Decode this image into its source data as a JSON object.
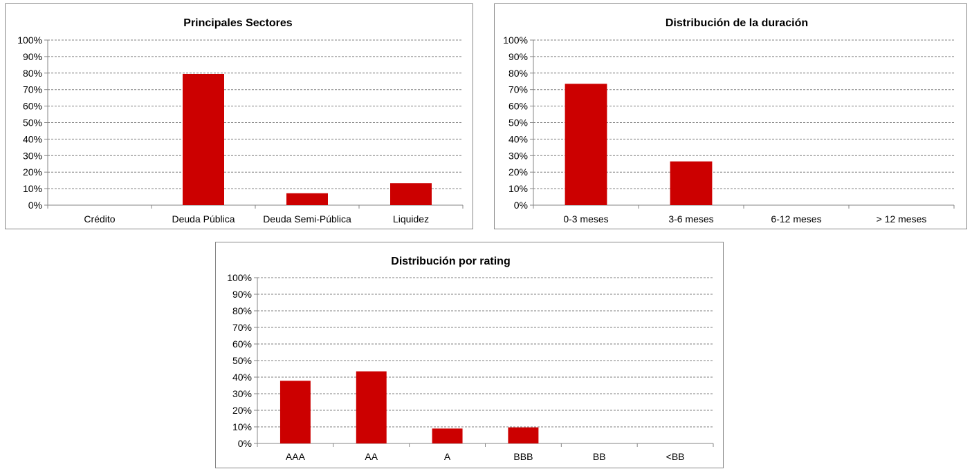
{
  "colors": {
    "bar": "#cc0000",
    "grid": "#7f7f7f",
    "axis": "#868686",
    "text": "#000000"
  },
  "chart_data": [
    {
      "type": "bar",
      "title": "Principales Sectores",
      "categories": [
        "Crédito",
        "Deuda Pública",
        "Deuda Semi-Pública",
        "Liquidez"
      ],
      "values": [
        0,
        79.5,
        7.2,
        13.3
      ],
      "ylim": [
        0,
        100
      ],
      "yticks": [
        "0%",
        "10%",
        "20%",
        "30%",
        "40%",
        "50%",
        "60%",
        "70%",
        "80%",
        "90%",
        "100%"
      ],
      "grid": true,
      "xlabel": "",
      "ylabel": ""
    },
    {
      "type": "bar",
      "title": "Distribución de la duración",
      "categories": [
        "0-3 meses",
        "3-6 meses",
        "6-12 meses",
        "> 12 meses"
      ],
      "values": [
        73.5,
        26.5,
        0,
        0
      ],
      "ylim": [
        0,
        100
      ],
      "yticks": [
        "0%",
        "10%",
        "20%",
        "30%",
        "40%",
        "50%",
        "60%",
        "70%",
        "80%",
        "90%",
        "100%"
      ],
      "grid": true,
      "xlabel": "",
      "ylabel": ""
    },
    {
      "type": "bar",
      "title": "Distribución por rating",
      "categories": [
        "AAA",
        "AA",
        "A",
        "BBB",
        "BB",
        "<BB"
      ],
      "values": [
        37.8,
        43.5,
        9.0,
        9.7,
        0,
        0
      ],
      "ylim": [
        0,
        100
      ],
      "yticks": [
        "0%",
        "10%",
        "20%",
        "30%",
        "40%",
        "50%",
        "60%",
        "70%",
        "80%",
        "90%",
        "100%"
      ],
      "grid": true,
      "xlabel": "",
      "ylabel": ""
    }
  ]
}
